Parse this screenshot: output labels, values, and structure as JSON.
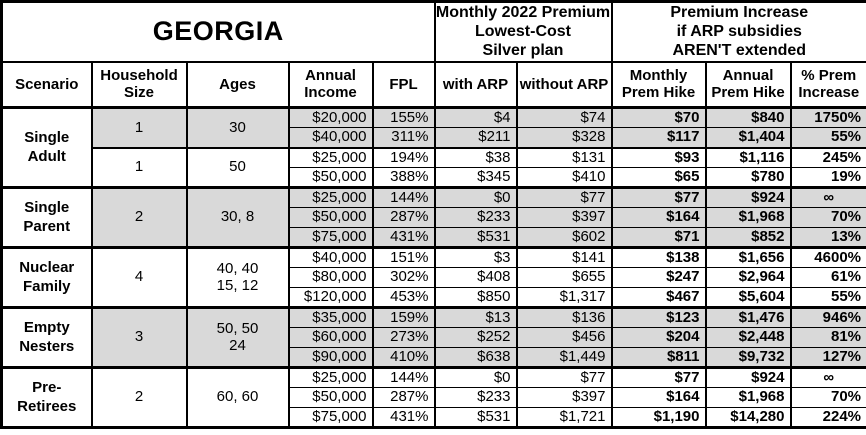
{
  "title": "GEORGIA",
  "header": {
    "premium_group": "Monthly 2022 Premium\nLowest-Cost\nSilver plan",
    "increase_group": "Premium Increase\nif ARP subsidies\nAREN'T extended",
    "columns": [
      "Scenario",
      "Household\nSize",
      "Ages",
      "Annual\nIncome",
      "FPL",
      "with ARP",
      "without ARP",
      "Monthly\nPrem Hike",
      "Annual\nPrem Hike",
      "% Prem\nIncrease"
    ]
  },
  "colors": {
    "shaded_row": "#d9d9d9",
    "border": "#000000",
    "background": "#ffffff"
  },
  "chart_data": {
    "type": "table",
    "title": "GEORGIA",
    "column_groups": [
      {
        "label": "GEORGIA",
        "span": 5
      },
      {
        "label": "Monthly 2022 Premium Lowest-Cost Silver plan",
        "span": 2
      },
      {
        "label": "Premium Increase if ARP subsidies AREN'T extended",
        "span": 3
      }
    ],
    "columns": [
      "Scenario",
      "Household Size",
      "Ages",
      "Annual Income",
      "FPL",
      "with ARP",
      "without ARP",
      "Monthly Prem Hike",
      "Annual Prem Hike",
      "% Prem Increase"
    ],
    "groups": [
      {
        "scenario": "Single\nAdult",
        "subgroups": [
          {
            "household_size": "1",
            "ages": "30",
            "shaded": true,
            "rows": [
              {
                "income": "$20,000",
                "fpl": "155%",
                "with_arp": "$4",
                "without_arp": "$74",
                "monthly_hike": "$70",
                "annual_hike": "$840",
                "pct_increase": "1750%"
              },
              {
                "income": "$40,000",
                "fpl": "311%",
                "with_arp": "$211",
                "without_arp": "$328",
                "monthly_hike": "$117",
                "annual_hike": "$1,404",
                "pct_increase": "55%"
              }
            ]
          },
          {
            "household_size": "1",
            "ages": "50",
            "shaded": false,
            "rows": [
              {
                "income": "$25,000",
                "fpl": "194%",
                "with_arp": "$38",
                "without_arp": "$131",
                "monthly_hike": "$93",
                "annual_hike": "$1,116",
                "pct_increase": "245%"
              },
              {
                "income": "$50,000",
                "fpl": "388%",
                "with_arp": "$345",
                "without_arp": "$410",
                "monthly_hike": "$65",
                "annual_hike": "$780",
                "pct_increase": "19%"
              }
            ]
          }
        ]
      },
      {
        "scenario": "Single\nParent",
        "subgroups": [
          {
            "household_size": "2",
            "ages": "30, 8",
            "shaded": true,
            "rows": [
              {
                "income": "$25,000",
                "fpl": "144%",
                "with_arp": "$0",
                "without_arp": "$77",
                "monthly_hike": "$77",
                "annual_hike": "$924",
                "pct_increase": "∞"
              },
              {
                "income": "$50,000",
                "fpl": "287%",
                "with_arp": "$233",
                "without_arp": "$397",
                "monthly_hike": "$164",
                "annual_hike": "$1,968",
                "pct_increase": "70%"
              },
              {
                "income": "$75,000",
                "fpl": "431%",
                "with_arp": "$531",
                "without_arp": "$602",
                "monthly_hike": "$71",
                "annual_hike": "$852",
                "pct_increase": "13%"
              }
            ]
          }
        ]
      },
      {
        "scenario": "Nuclear\nFamily",
        "subgroups": [
          {
            "household_size": "4",
            "ages": "40, 40\n15, 12",
            "shaded": false,
            "rows": [
              {
                "income": "$40,000",
                "fpl": "151%",
                "with_arp": "$3",
                "without_arp": "$141",
                "monthly_hike": "$138",
                "annual_hike": "$1,656",
                "pct_increase": "4600%"
              },
              {
                "income": "$80,000",
                "fpl": "302%",
                "with_arp": "$408",
                "without_arp": "$655",
                "monthly_hike": "$247",
                "annual_hike": "$2,964",
                "pct_increase": "61%"
              },
              {
                "income": "$120,000",
                "fpl": "453%",
                "with_arp": "$850",
                "without_arp": "$1,317",
                "monthly_hike": "$467",
                "annual_hike": "$5,604",
                "pct_increase": "55%"
              }
            ]
          }
        ]
      },
      {
        "scenario": "Empty\nNesters",
        "subgroups": [
          {
            "household_size": "3",
            "ages": "50, 50\n24",
            "shaded": true,
            "rows": [
              {
                "income": "$35,000",
                "fpl": "159%",
                "with_arp": "$13",
                "without_arp": "$136",
                "monthly_hike": "$123",
                "annual_hike": "$1,476",
                "pct_increase": "946%"
              },
              {
                "income": "$60,000",
                "fpl": "273%",
                "with_arp": "$252",
                "without_arp": "$456",
                "monthly_hike": "$204",
                "annual_hike": "$2,448",
                "pct_increase": "81%"
              },
              {
                "income": "$90,000",
                "fpl": "410%",
                "with_arp": "$638",
                "without_arp": "$1,449",
                "monthly_hike": "$811",
                "annual_hike": "$9,732",
                "pct_increase": "127%"
              }
            ]
          }
        ]
      },
      {
        "scenario": "Pre-\nRetirees",
        "subgroups": [
          {
            "household_size": "2",
            "ages": "60, 60",
            "shaded": false,
            "rows": [
              {
                "income": "$25,000",
                "fpl": "144%",
                "with_arp": "$0",
                "without_arp": "$77",
                "monthly_hike": "$77",
                "annual_hike": "$924",
                "pct_increase": "∞"
              },
              {
                "income": "$50,000",
                "fpl": "287%",
                "with_arp": "$233",
                "without_arp": "$397",
                "monthly_hike": "$164",
                "annual_hike": "$1,968",
                "pct_increase": "70%"
              },
              {
                "income": "$75,000",
                "fpl": "431%",
                "with_arp": "$531",
                "without_arp": "$1,721",
                "monthly_hike": "$1,190",
                "annual_hike": "$14,280",
                "pct_increase": "224%"
              }
            ]
          }
        ]
      }
    ]
  }
}
